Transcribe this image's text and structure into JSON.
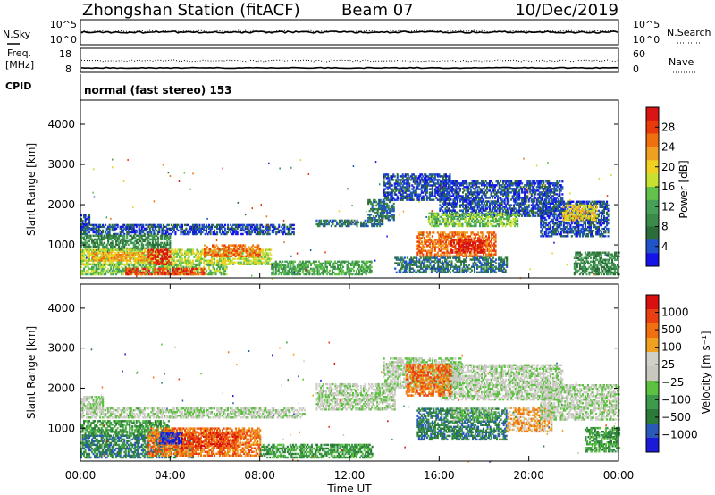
{
  "header": {
    "station": "Zhongshan Station (fitACF)",
    "beam": "Beam 07",
    "date": "10/Dec/2019"
  },
  "panels": {
    "nsky_label": "N.Sky",
    "nsearch_label": "N.Search",
    "freq_label_line1": "Freq.",
    "freq_label_line2": "[MHz]",
    "nave_label": "Nave",
    "cpid_label": "CPID",
    "cpid_text": "normal (fast stereo) 153",
    "noise_tick_top": "10^5",
    "noise_tick_bottom": "10^0",
    "freq_ticks": [
      "18",
      "8"
    ],
    "nave_ticks": [
      "60",
      "0"
    ]
  },
  "chart_data": [
    {
      "type": "heatmap",
      "title": "",
      "xlabel": "Time UT",
      "ylabel": "Slant Range [km]",
      "x_ticks": [
        "00:00",
        "04:00",
        "08:00",
        "12:00",
        "16:00",
        "20:00",
        "00:00"
      ],
      "y_ticks": [
        1000,
        2000,
        3000,
        4000
      ],
      "xlim": [
        0,
        24
      ],
      "ylim": [
        180,
        4600
      ],
      "colorbar": {
        "label": "Power [dB]",
        "ticks": [
          "28",
          "24",
          "20",
          "16",
          "12",
          "8",
          "4"
        ],
        "colors": [
          "#1414e8",
          "#1e54c8",
          "#2c6b3a",
          "#3a8a4a",
          "#46a058",
          "#62c24a",
          "#c8e030",
          "#f0d020",
          "#f0a020",
          "#f07010",
          "#e83a0a",
          "#d81414"
        ]
      },
      "regions": [
        {
          "t0": 0.0,
          "t1": 0.4,
          "r0": 1400,
          "r1": 1750,
          "level": 1
        },
        {
          "t0": 0.0,
          "t1": 9.5,
          "r0": 1250,
          "r1": 1500,
          "level": 1
        },
        {
          "t0": 0.0,
          "t1": 4.0,
          "r0": 850,
          "r1": 1250,
          "level": 3
        },
        {
          "t0": 0.0,
          "t1": 8.5,
          "r0": 500,
          "r1": 900,
          "level": 6
        },
        {
          "t0": 0.5,
          "t1": 3.5,
          "r0": 600,
          "r1": 800,
          "level": 8
        },
        {
          "t0": 0.0,
          "t1": 6.5,
          "r0": 250,
          "r1": 500,
          "level": 5
        },
        {
          "t0": 2.0,
          "t1": 5.5,
          "r0": 250,
          "r1": 400,
          "level": 10
        },
        {
          "t0": 3.0,
          "t1": 4.0,
          "r0": 500,
          "r1": 900,
          "level": 11
        },
        {
          "t0": 5.5,
          "t1": 8.0,
          "r0": 700,
          "r1": 1000,
          "level": 9
        },
        {
          "t0": 8.5,
          "t1": 13.0,
          "r0": 250,
          "r1": 600,
          "level": 4
        },
        {
          "t0": 10.5,
          "t1": 13.5,
          "r0": 1450,
          "r1": 1600,
          "level": 2
        },
        {
          "t0": 12.8,
          "t1": 14.0,
          "r0": 1600,
          "r1": 2100,
          "level": 2
        },
        {
          "t0": 13.5,
          "t1": 16.5,
          "r0": 2100,
          "r1": 2750,
          "level": 1
        },
        {
          "t0": 16.0,
          "t1": 21.5,
          "r0": 1700,
          "r1": 2600,
          "level": 1
        },
        {
          "t0": 15.5,
          "t1": 19.5,
          "r0": 1450,
          "r1": 1800,
          "level": 5
        },
        {
          "t0": 15.0,
          "t1": 18.5,
          "r0": 700,
          "r1": 1300,
          "level": 9
        },
        {
          "t0": 16.5,
          "t1": 18.0,
          "r0": 800,
          "r1": 1150,
          "level": 11
        },
        {
          "t0": 14.0,
          "t1": 19.0,
          "r0": 300,
          "r1": 700,
          "level": 2
        },
        {
          "t0": 20.5,
          "t1": 23.5,
          "r0": 1200,
          "r1": 2100,
          "level": 1
        },
        {
          "t0": 21.5,
          "t1": 23.0,
          "r0": 1600,
          "r1": 2000,
          "level": 7
        },
        {
          "t0": 22.0,
          "t1": 24.0,
          "r0": 250,
          "r1": 800,
          "level": 3
        }
      ]
    },
    {
      "type": "heatmap",
      "title": "",
      "xlabel": "Time UT",
      "ylabel": "Slant Range [km]",
      "x_ticks": [
        "00:00",
        "04:00",
        "08:00",
        "12:00",
        "16:00",
        "20:00",
        "00:00"
      ],
      "y_ticks": [
        1000,
        2000,
        3000,
        4000
      ],
      "xlim": [
        0,
        24
      ],
      "ylim": [
        180,
        4600
      ],
      "colorbar": {
        "label": "Velocity [m s⁻¹]",
        "ticks": [
          "1000",
          "500",
          "100",
          "25",
          "−25",
          "−100",
          "−500",
          "−1000"
        ],
        "colors": [
          "#1a1ad8",
          "#2a5ab8",
          "#2c7a3a",
          "#3c9a4a",
          "#5cc040",
          "#c8c8c0",
          "#d0d0c8",
          "#f0a020",
          "#f07010",
          "#e84010",
          "#d81010"
        ]
      },
      "regions": [
        {
          "t0": 0.0,
          "t1": 1.0,
          "r0": 1450,
          "r1": 1800,
          "level": 5
        },
        {
          "t0": 0.0,
          "t1": 10.0,
          "r0": 1250,
          "r1": 1500,
          "level": 5
        },
        {
          "t0": 0.0,
          "t1": 4.0,
          "r0": 800,
          "r1": 1200,
          "level": 3
        },
        {
          "t0": 0.0,
          "t1": 5.0,
          "r0": 250,
          "r1": 800,
          "level": 2
        },
        {
          "t0": 3.0,
          "t1": 8.0,
          "r0": 300,
          "r1": 1000,
          "level": 8
        },
        {
          "t0": 4.5,
          "t1": 7.0,
          "r0": 500,
          "r1": 900,
          "level": 9
        },
        {
          "t0": 3.5,
          "t1": 4.5,
          "r0": 600,
          "r1": 900,
          "level": 0
        },
        {
          "t0": 8.0,
          "t1": 13.0,
          "r0": 250,
          "r1": 600,
          "level": 3
        },
        {
          "t0": 10.5,
          "t1": 14.0,
          "r0": 1450,
          "r1": 2100,
          "level": 5
        },
        {
          "t0": 13.5,
          "t1": 17.0,
          "r0": 2000,
          "r1": 2750,
          "level": 5
        },
        {
          "t0": 16.0,
          "t1": 21.5,
          "r0": 1700,
          "r1": 2600,
          "level": 5
        },
        {
          "t0": 14.5,
          "t1": 16.5,
          "r0": 1800,
          "r1": 2600,
          "level": 8
        },
        {
          "t0": 15.0,
          "t1": 19.0,
          "r0": 700,
          "r1": 1500,
          "level": 2
        },
        {
          "t0": 16.5,
          "t1": 18.5,
          "r0": 1200,
          "r1": 1500,
          "level": 4
        },
        {
          "t0": 19.0,
          "t1": 21.0,
          "r0": 900,
          "r1": 1500,
          "level": 7
        },
        {
          "t0": 20.5,
          "t1": 24.0,
          "r0": 1200,
          "r1": 2100,
          "level": 5
        },
        {
          "t0": 22.5,
          "t1": 24.0,
          "r0": 400,
          "r1": 1000,
          "level": 3
        }
      ]
    }
  ]
}
